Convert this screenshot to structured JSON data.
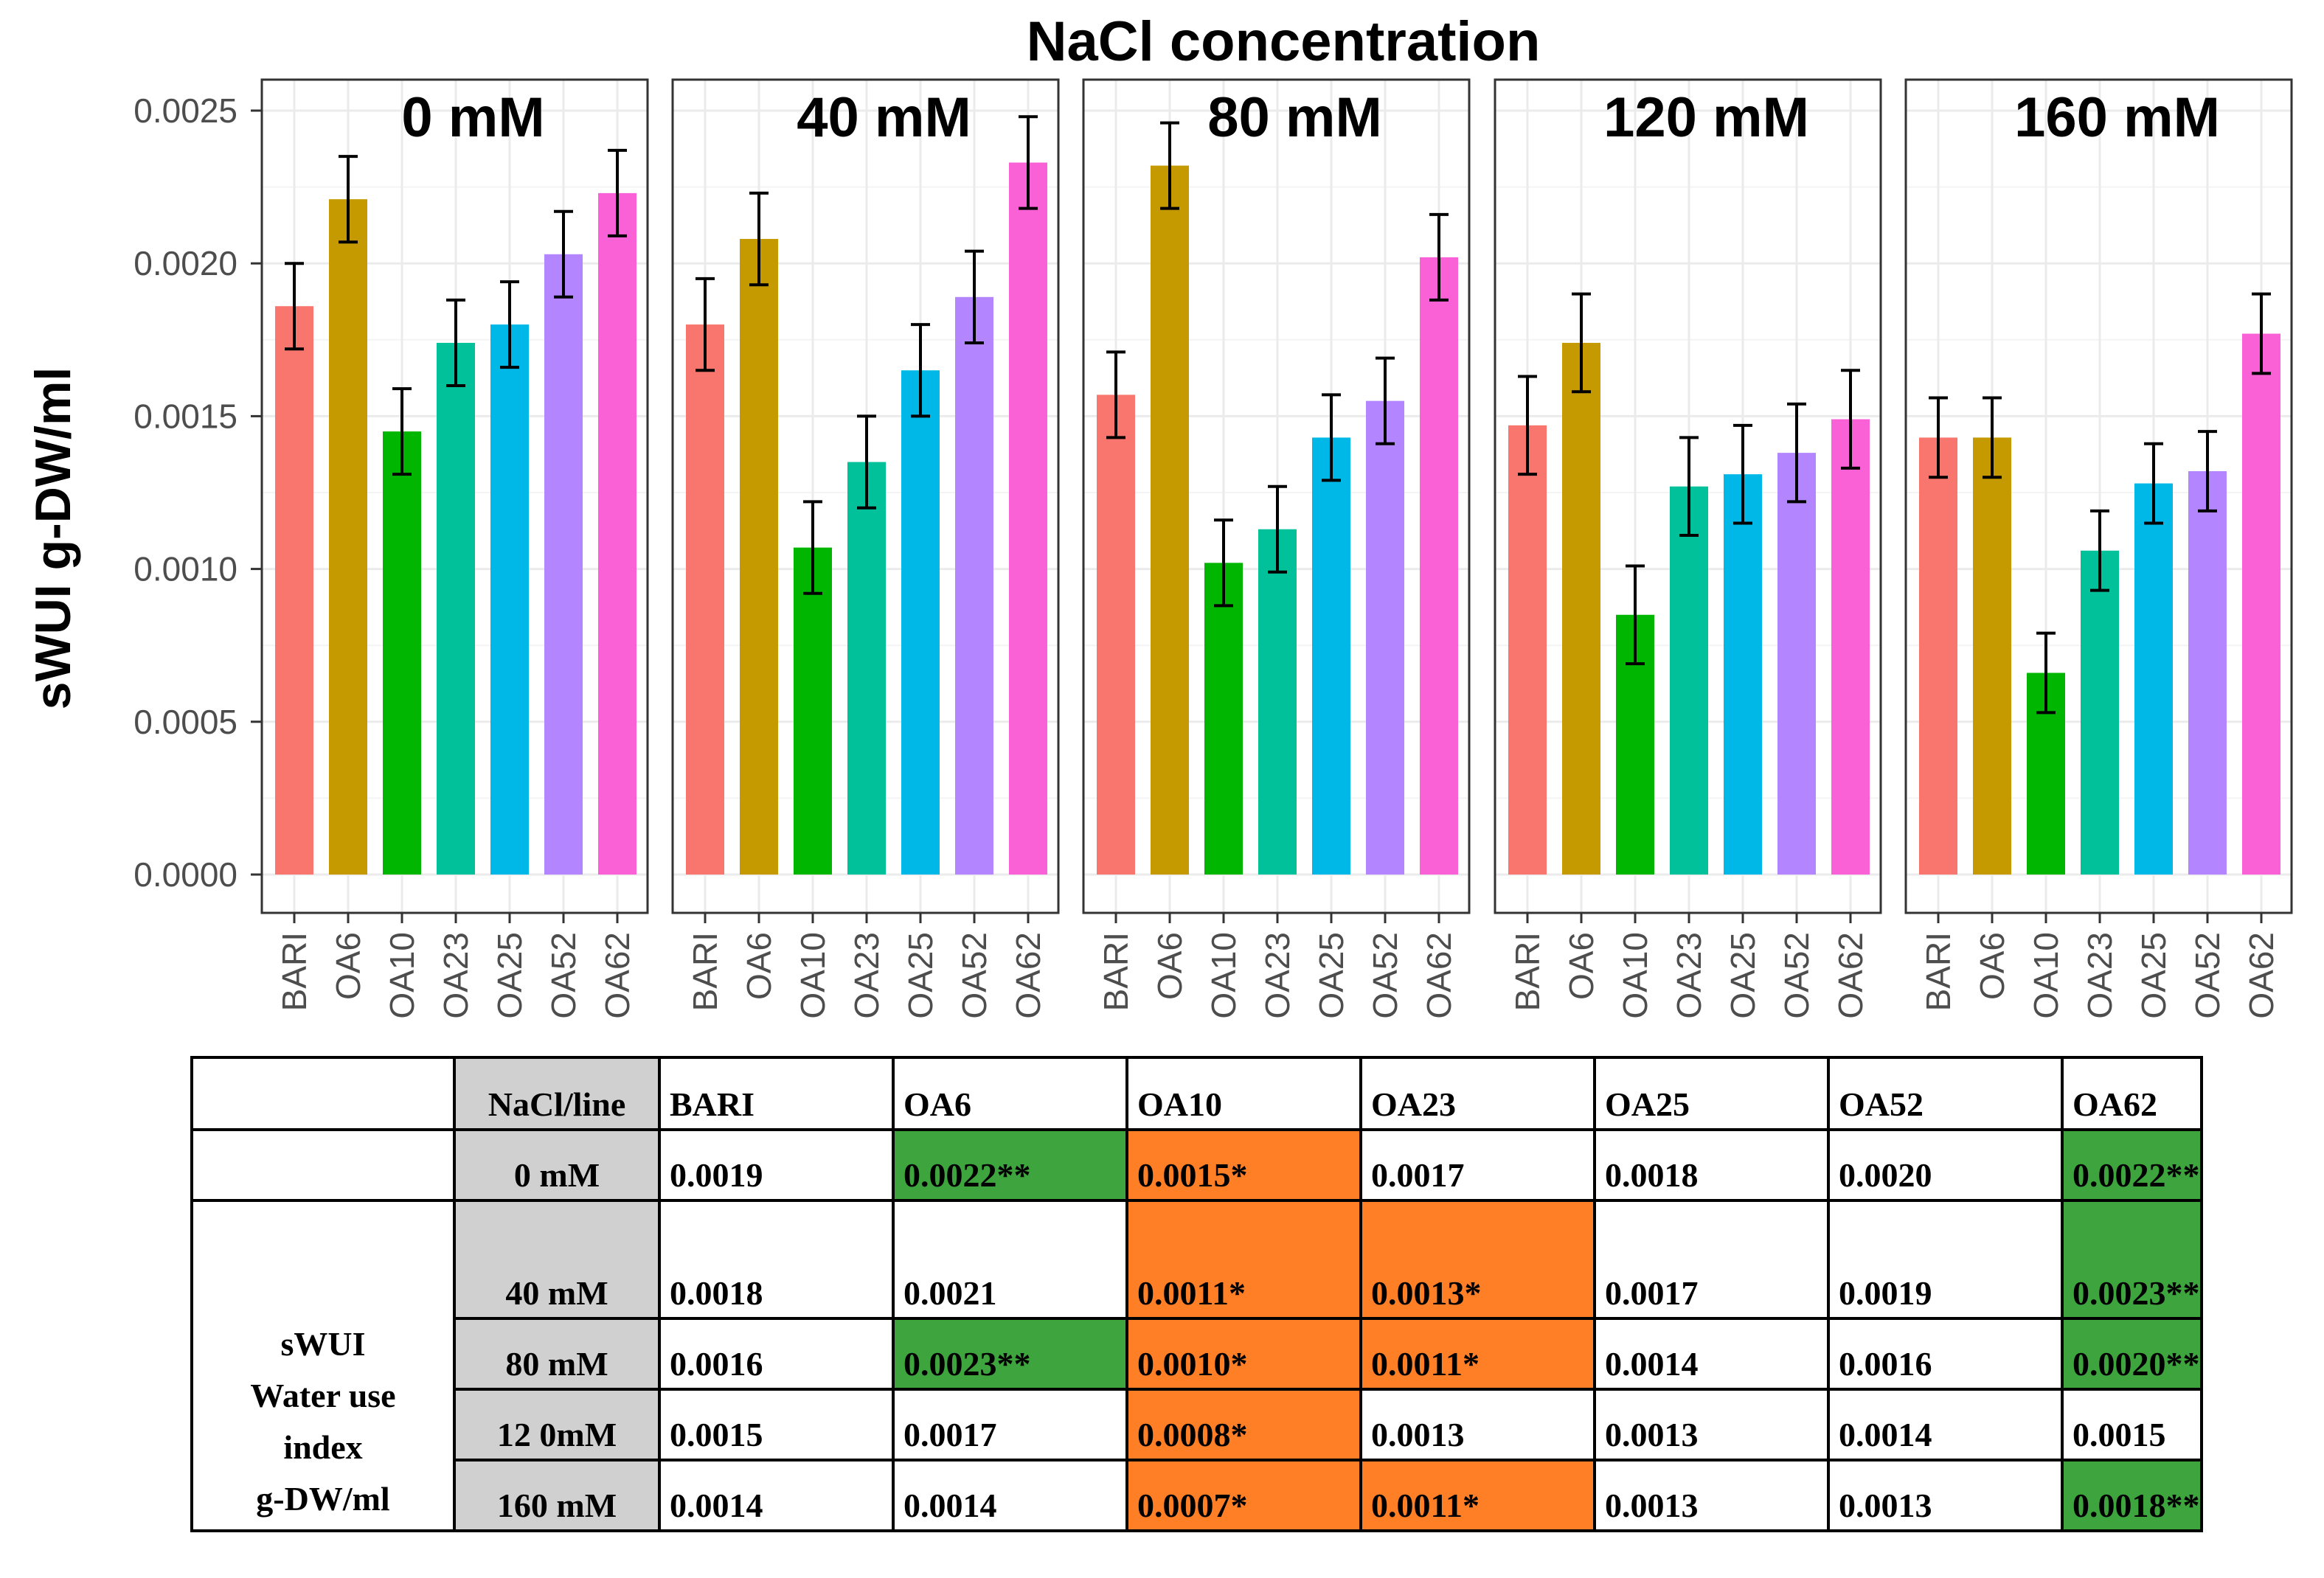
{
  "chart_data": {
    "type": "bar",
    "title": "NaCl concentration",
    "ylabel": "sWUI g-DW/ml",
    "ylim": [
      0,
      0.0025
    ],
    "yticks": [
      "0.0000",
      "0.0005",
      "0.0010",
      "0.0015",
      "0.0020",
      "0.0025"
    ],
    "ytick_values": [
      0,
      0.0005,
      0.001,
      0.0015,
      0.002,
      0.0025
    ],
    "categories": [
      "BARI",
      "OA6",
      "OA10",
      "OA23",
      "OA25",
      "OA52",
      "OA62"
    ],
    "colors": [
      "#f8766d",
      "#c49a00",
      "#00b600",
      "#00c19a",
      "#00b8e7",
      "#b385ff",
      "#fb61d7"
    ],
    "grid": true,
    "panels": [
      {
        "name": "0 mM",
        "values": [
          0.00186,
          0.00221,
          0.00145,
          0.00174,
          0.0018,
          0.00203,
          0.00223
        ],
        "errors": [
          0.00014,
          0.00014,
          0.00014,
          0.00014,
          0.00014,
          0.00014,
          0.00014
        ]
      },
      {
        "name": "40 mM",
        "values": [
          0.0018,
          0.00208,
          0.00107,
          0.00135,
          0.00165,
          0.00189,
          0.00233
        ],
        "errors": [
          0.00015,
          0.00015,
          0.00015,
          0.00015,
          0.00015,
          0.00015,
          0.00015
        ]
      },
      {
        "name": "80 mM",
        "values": [
          0.00157,
          0.00232,
          0.00102,
          0.00113,
          0.00143,
          0.00155,
          0.00202
        ],
        "errors": [
          0.00014,
          0.00014,
          0.00014,
          0.00014,
          0.00014,
          0.00014,
          0.00014
        ]
      },
      {
        "name": "120 mM",
        "values": [
          0.00147,
          0.00174,
          0.00085,
          0.00127,
          0.00131,
          0.00138,
          0.00149
        ],
        "errors": [
          0.00016,
          0.00016,
          0.00016,
          0.00016,
          0.00016,
          0.00016,
          0.00016
        ]
      },
      {
        "name": "160 mM",
        "values": [
          0.00143,
          0.00143,
          0.00066,
          0.00106,
          0.00128,
          0.00132,
          0.00177
        ],
        "errors": [
          0.00013,
          0.00013,
          0.00013,
          0.00013,
          0.00013,
          0.00013,
          0.00013
        ]
      }
    ]
  },
  "table": {
    "row_group_label_lines": [
      "sWUI",
      "Water use",
      "index",
      "g-DW/ml"
    ],
    "header": [
      "NaCl/line",
      "BARI",
      "OA6",
      "OA10",
      "OA23",
      "OA25",
      "OA52",
      "OA62"
    ],
    "rows": [
      {
        "label": "0 mM",
        "cells": [
          "0.0019",
          "0.0022**",
          "0.0015*",
          "0.0017",
          "0.0018",
          "0.0020",
          "0.0022**"
        ]
      },
      {
        "label": "40 mM",
        "cells": [
          "0.0018",
          "0.0021",
          "0.0011*",
          "0.0013*",
          "0.0017",
          "0.0019",
          "0.0023**"
        ]
      },
      {
        "label": "80 mM",
        "cells": [
          "0.0016",
          "0.0023**",
          "0.0010*",
          "0.0011*",
          "0.0014",
          "0.0016",
          "0.0020**"
        ]
      },
      {
        "label": "12 0mM",
        "cells": [
          "0.0015",
          "0.0017",
          "0.0008*",
          "0.0013",
          "0.0013",
          "0.0014",
          "0.0015"
        ]
      },
      {
        "label": "160 mM",
        "cells": [
          "0.0014",
          "0.0014",
          "0.0007*",
          "0.0011*",
          "0.0013",
          "0.0013",
          "0.0018**"
        ]
      }
    ],
    "highlight_colors": {
      "increase": "#3ea53e",
      "decrease": "#ff7f27"
    }
  }
}
